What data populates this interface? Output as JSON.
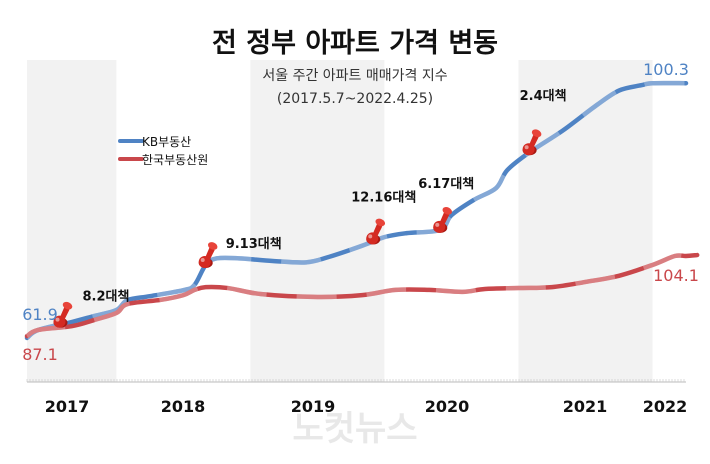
{
  "chart_data": {
    "type": "line",
    "title": "전 정부 아파트 가격 변동",
    "subtitle": "서울 주간 아파트 매매가격 지수",
    "period": "(2017.5.7~2022.4.25)",
    "xlim": [
      "2017-05",
      "2022-04"
    ],
    "x_tick_labels": [
      "2017",
      "2018",
      "2019",
      "2020",
      "2021",
      "2022"
    ],
    "shaded_years": [
      "2017",
      "2019",
      "2021"
    ],
    "grid": false,
    "legend_position": "top-left",
    "series": [
      {
        "name": "KB부동산",
        "color": "#4f83c4",
        "ylim": [
          53.3,
          103.8
        ],
        "start_label": "61.9",
        "end_label": "100.3",
        "x": [
          "2017-05",
          "2017-06",
          "2017-09",
          "2017-11",
          "2018-01",
          "2018-02",
          "2018-04",
          "2018-07",
          "2018-08",
          "2018-09",
          "2018-10",
          "2018-12",
          "2019-03",
          "2019-06",
          "2019-08",
          "2019-11",
          "2020-01",
          "2020-03",
          "2020-06",
          "2020-07",
          "2020-09",
          "2020-11",
          "2020-12",
          "2021-02",
          "2021-05",
          "2021-08",
          "2021-10",
          "2021-12",
          "2022-01",
          "2022-04"
        ],
        "values": [
          61.9,
          63.1,
          64.3,
          65.2,
          66.1,
          67.6,
          68.2,
          69.1,
          69.9,
          72.9,
          73.9,
          73.9,
          73.5,
          73.3,
          74.1,
          75.8,
          77.1,
          77.7,
          78.2,
          80.4,
          82.7,
          84.5,
          87.2,
          89.9,
          93.2,
          97.0,
          99.2,
          100.0,
          100.3,
          100.3
        ]
      },
      {
        "name": "한국부동산원",
        "color": "#c9474b",
        "ylim": [
          74.6,
          145.7
        ],
        "start_label": "87.1",
        "end_label": "104.1",
        "x": [
          "2017-05",
          "2017-06",
          "2017-09",
          "2017-11",
          "2018-01",
          "2018-02",
          "2018-05",
          "2018-07",
          "2018-08",
          "2018-09",
          "2018-11",
          "2019-02",
          "2019-07",
          "2019-11",
          "2020-02",
          "2020-05",
          "2020-08",
          "2020-10",
          "2021-01",
          "2021-04",
          "2021-07",
          "2021-10",
          "2022-01",
          "2022-03",
          "2022-05",
          "2022-04"
        ],
        "values": [
          87.1,
          88.4,
          89.2,
          90.5,
          92.0,
          93.9,
          94.8,
          95.8,
          96.9,
          97.5,
          97.3,
          96.0,
          95.4,
          95.8,
          96.9,
          96.9,
          96.5,
          97.1,
          97.3,
          97.5,
          98.6,
          99.9,
          102.2,
          104.1,
          104.3,
          104.1
        ]
      }
    ],
    "annotations": [
      {
        "label": "8.2대책",
        "x": "2017-08",
        "dx": 22,
        "dy": -22
      },
      {
        "label": "9.13대책",
        "x": "2018-09",
        "dx": 20,
        "dy": -15
      },
      {
        "label": "12.16대책",
        "x": "2019-12",
        "dx": -22,
        "dy": -38
      },
      {
        "label": "6.17대책",
        "x": "2020-06",
        "dx": -22,
        "dy": -40
      },
      {
        "label": "2.4대책",
        "x": "2021-02",
        "dx": -10,
        "dy": -50
      }
    ],
    "pin_color": "#d42a22",
    "watermark": "노컷뉴스"
  }
}
